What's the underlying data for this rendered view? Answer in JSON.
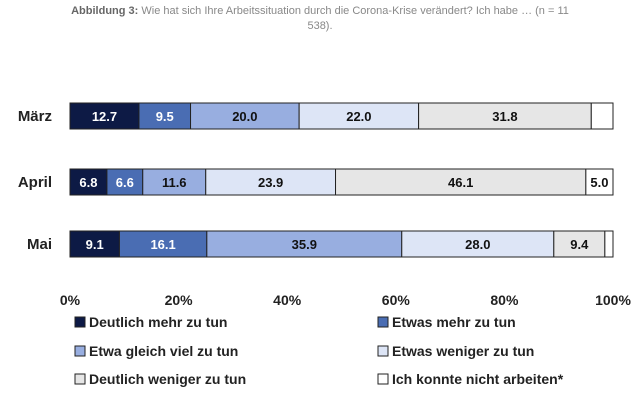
{
  "caption": {
    "prefix": "Abbildung 3:",
    "line1": "Wie hat sich Ihre Arbeitssituation durch die Corona-Krise verändert? Ich habe … (n = 11",
    "line2": "538)."
  },
  "chart_data": {
    "type": "bar",
    "orientation": "horizontal-stacked-100",
    "categories": [
      "März",
      "April",
      "Mai"
    ],
    "series": [
      {
        "name": "Deutlich mehr zu tun",
        "color": "#0d1a45",
        "label_color": "#ffffff",
        "values": [
          12.7,
          6.8,
          9.1
        ]
      },
      {
        "name": "Etwas mehr zu tun",
        "color": "#4a6db3",
        "label_color": "#ffffff",
        "values": [
          9.5,
          6.6,
          16.1
        ]
      },
      {
        "name": "Etwa gleich viel zu tun",
        "color": "#98aee0",
        "label_color": "#111111",
        "values": [
          20.0,
          11.6,
          35.9
        ]
      },
      {
        "name": "Etwas weniger zu tun",
        "color": "#dde5f6",
        "label_color": "#111111",
        "values": [
          22.0,
          23.9,
          28.0
        ]
      },
      {
        "name": "Deutlich weniger zu tun",
        "color": "#e6e6e6",
        "label_color": "#111111",
        "values": [
          31.8,
          46.1,
          9.4
        ]
      },
      {
        "name": "Ich konnte nicht arbeiten*",
        "color": "#ffffff",
        "label_color": "#111111",
        "values": [
          4.0,
          5.0,
          1.5
        ]
      }
    ],
    "value_labels": [
      [
        "12.7",
        "9.5",
        "20.0",
        "22.0",
        "31.8",
        ""
      ],
      [
        "6.8",
        "6.6",
        "11.6",
        "23.9",
        "46.1",
        "5.0"
      ],
      [
        "9.1",
        "16.1",
        "35.9",
        "28.0",
        "9.4",
        ""
      ]
    ],
    "xticks": [
      "0%",
      "20%",
      "40%",
      "60%",
      "80%",
      "100%"
    ],
    "xlim": [
      0,
      100
    ],
    "legend_position": "bottom"
  }
}
